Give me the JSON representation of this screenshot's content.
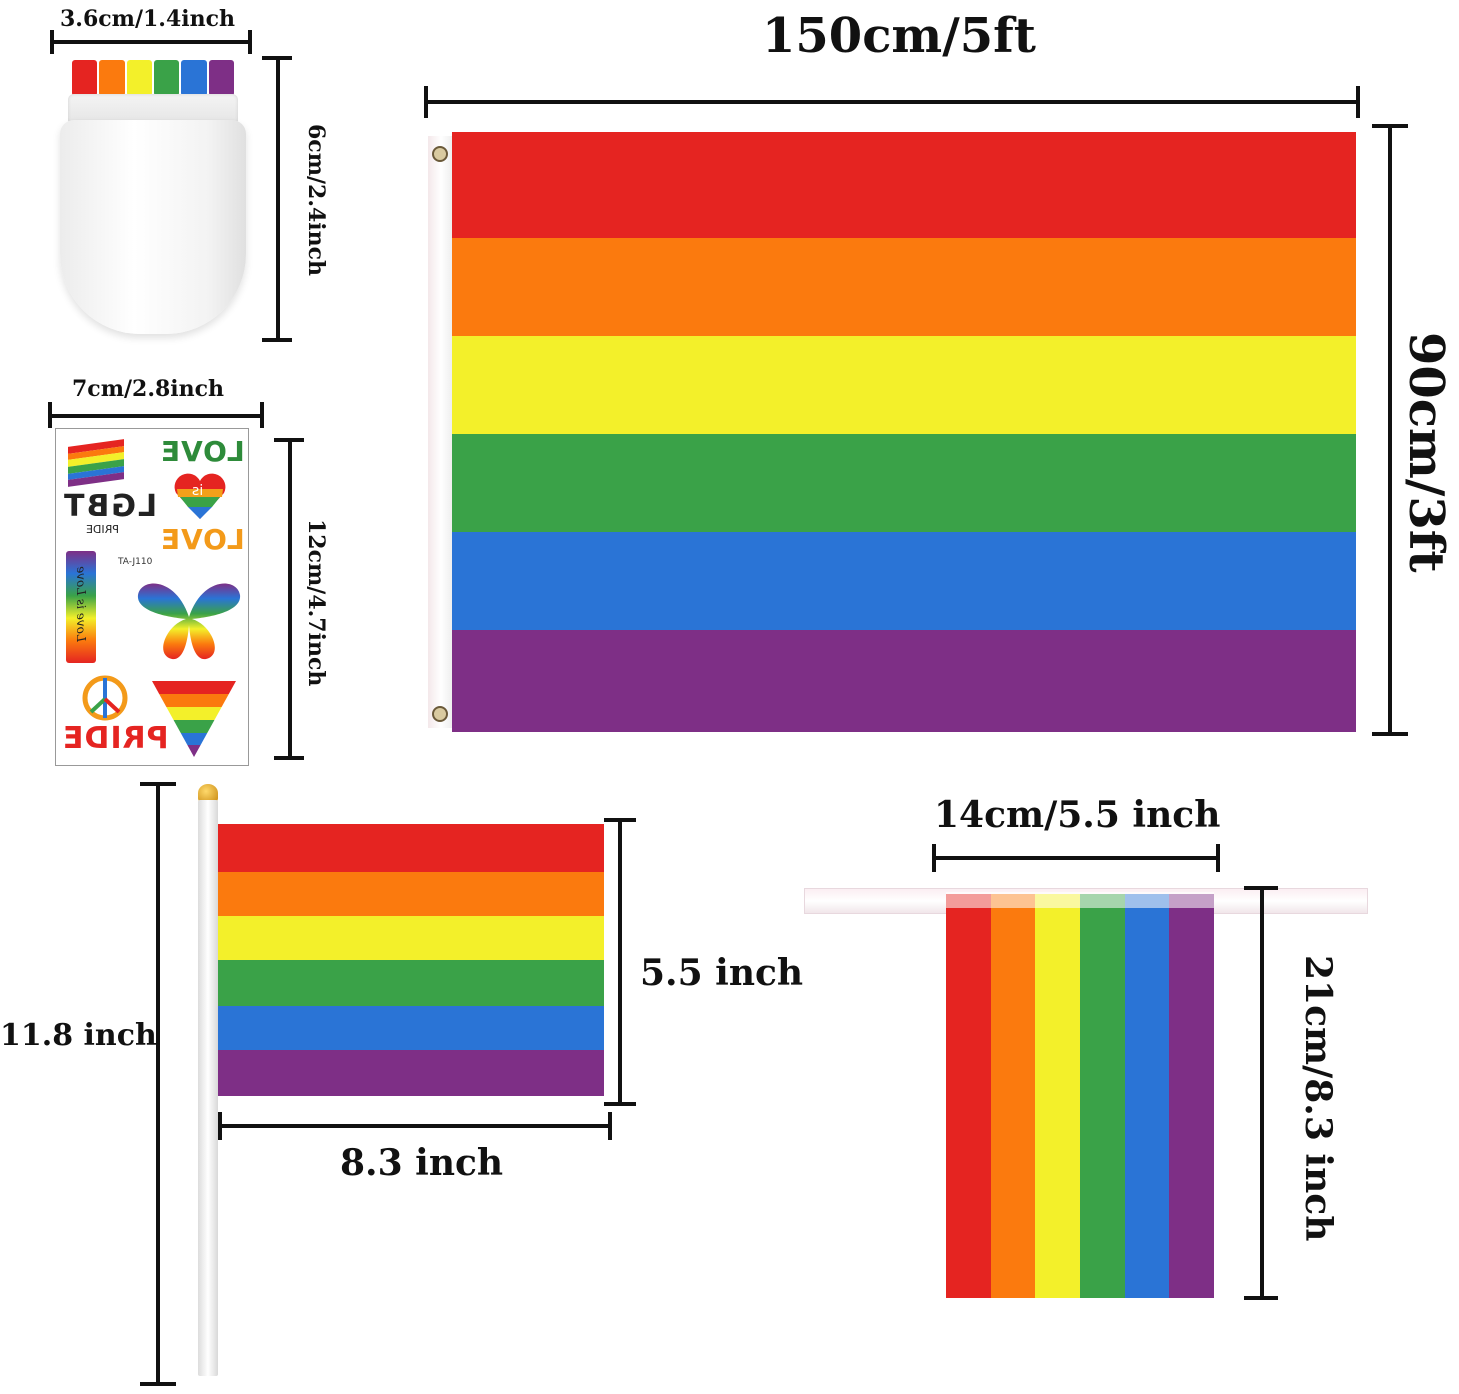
{
  "colors": {
    "red": "#e52421",
    "orange": "#fb7a0e",
    "yellow": "#f3f02a",
    "green": "#3aa248",
    "blue": "#2a74d6",
    "purple": "#7e2f86",
    "dim_line": "#111111"
  },
  "face_paint": {
    "width_label": "3.6cm/1.4inch",
    "height_label": "6cm/2.4inch"
  },
  "tattoo_sheet": {
    "width_label": "7cm/2.8inch",
    "height_label": "12cm/4.7inch",
    "code": "TA-J110",
    "words": {
      "love_top": "LOVE",
      "is": "is",
      "lgbt": "LGBT",
      "pride_small": "PRIDE",
      "love_mid": "LOVE",
      "love_is_love": "Love is Love",
      "pride_big": "PRIDE"
    }
  },
  "big_flag": {
    "width_label": "150cm/5ft",
    "height_label": "90cm/3ft"
  },
  "hand_flag": {
    "total_height_label": "11.8 inch",
    "flag_height_label": "5.5 inch",
    "flag_width_label": "8.3 inch"
  },
  "bunting_flag": {
    "width_label": "14cm/5.5 inch",
    "height_label": "21cm/8.3 inch"
  }
}
